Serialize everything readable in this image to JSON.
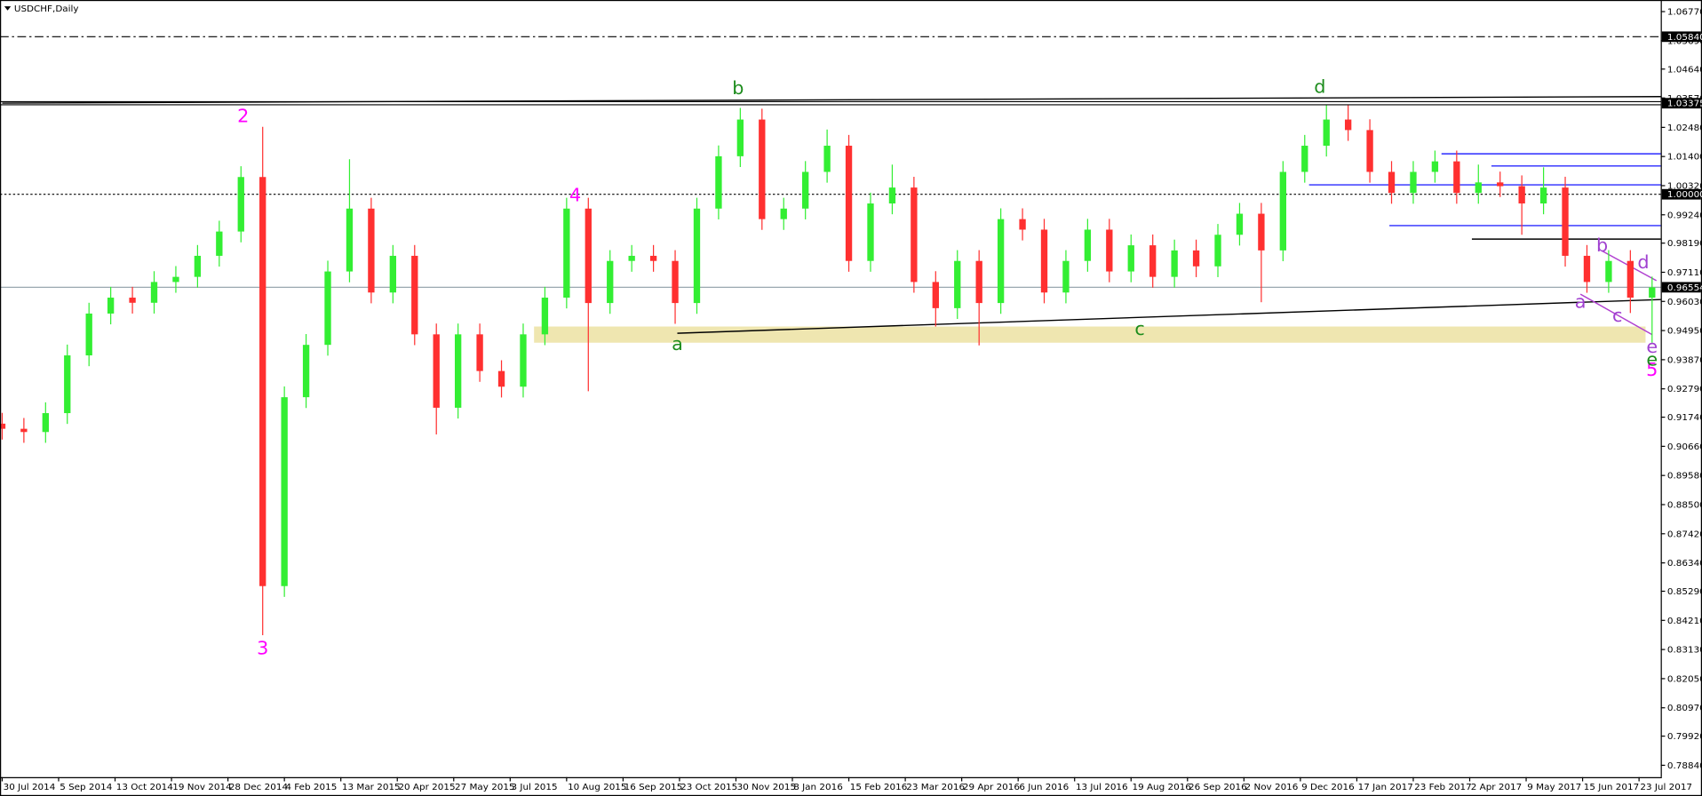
{
  "chart_data": {
    "type": "candlestick",
    "title": "USDCHF,Daily",
    "x": [
      0,
      10,
      20,
      30,
      40,
      50,
      60,
      70,
      80,
      90,
      100,
      110,
      120,
      130,
      140,
      150,
      160,
      170,
      180,
      190,
      200,
      210,
      220,
      230,
      240,
      250,
      260,
      270,
      280,
      290,
      300,
      310,
      320,
      330,
      340,
      350,
      360,
      370,
      380,
      390,
      400,
      410,
      420,
      430,
      440,
      450,
      460,
      470,
      480,
      490,
      500,
      510,
      520,
      530,
      540,
      550,
      560,
      570,
      580,
      590,
      600,
      610,
      620,
      630,
      640,
      650,
      660,
      670,
      680,
      690,
      700,
      710,
      720,
      730,
      740,
      750,
      760
    ],
    "open": [
      0.915,
      0.9131,
      0.9119,
      0.9189,
      0.9403,
      0.9558,
      0.9617,
      0.9598,
      0.9675,
      0.9694,
      0.9772,
      0.9862,
      1.0064,
      0.8548,
      0.9248,
      0.9442,
      0.9714,
      0.9947,
      0.9636,
      0.9772,
      0.9481,
      0.9209,
      0.9481,
      0.9345,
      0.9287,
      0.9481,
      0.9617,
      0.9947,
      0.9597,
      0.9753,
      0.9772,
      0.9753,
      0.9597,
      0.9947,
      1.0141,
      1.0277,
      0.9908,
      0.9947,
      1.0083,
      1.018,
      0.9753,
      0.9966,
      1.0025,
      0.9675,
      0.9578,
      0.9753,
      0.9597,
      0.9908,
      0.9869,
      0.9636,
      0.9753,
      0.9869,
      0.9714,
      0.9811,
      0.9694,
      0.9792,
      0.9733,
      0.985,
      0.9928,
      0.9792,
      1.0083,
      1.018,
      1.0277,
      1.0238,
      1.0083,
      1.0005,
      1.0083,
      1.0122,
      1.0005,
      1.0044,
      1.003,
      0.9966,
      1.0025,
      0.9772,
      0.9675,
      0.9753,
      0.9617
    ],
    "high": [
      0.919,
      0.9171,
      0.9229,
      0.9443,
      0.9598,
      0.9657,
      0.9657,
      0.9715,
      0.9734,
      0.9812,
      0.9902,
      1.0104,
      1.025,
      0.9288,
      0.9482,
      0.9754,
      1.013,
      0.9987,
      0.9812,
      0.9812,
      0.9521,
      0.9521,
      0.9521,
      0.9385,
      0.9521,
      0.9657,
      0.9987,
      0.9987,
      0.9793,
      0.9812,
      0.9812,
      0.9793,
      0.9987,
      1.0181,
      1.032,
      1.0317,
      0.9987,
      1.0123,
      1.024,
      1.022,
      1.0006,
      1.011,
      1.0065,
      0.9715,
      0.9793,
      0.9793,
      0.9948,
      0.9948,
      0.9909,
      0.9793,
      0.9909,
      0.9909,
      0.9851,
      0.9851,
      0.9832,
      0.9832,
      0.989,
      0.9968,
      0.9968,
      1.0123,
      1.022,
      1.033,
      1.033,
      1.0278,
      1.0123,
      1.0123,
      1.0162,
      1.0162,
      1.011,
      1.0084,
      1.007,
      1.01,
      1.0065,
      0.9812,
      0.9793,
      0.9793,
      0.9695
    ],
    "low": [
      0.9091,
      0.9079,
      0.9079,
      0.9149,
      0.9363,
      0.9518,
      0.9558,
      0.9558,
      0.9635,
      0.9654,
      0.9732,
      0.9822,
      0.8366,
      0.8508,
      0.9208,
      0.9402,
      0.9674,
      0.9596,
      0.9596,
      0.9441,
      0.911,
      0.9169,
      0.9305,
      0.9247,
      0.9247,
      0.9441,
      0.9577,
      0.927,
      0.9557,
      0.9713,
      0.9713,
      0.952,
      0.9557,
      0.9907,
      1.0101,
      0.9868,
      0.9868,
      0.9907,
      1.0043,
      0.9713,
      0.9713,
      0.9926,
      0.9635,
      0.951,
      0.9538,
      0.944,
      0.9557,
      0.9829,
      0.9596,
      0.9596,
      0.9713,
      0.9674,
      0.9674,
      0.9654,
      0.9654,
      0.9693,
      0.9693,
      0.981,
      0.96,
      0.9752,
      1.0043,
      1.014,
      1.0198,
      1.0043,
      0.9965,
      0.9965,
      1.0043,
      0.9965,
      0.9965,
      0.999,
      0.985,
      0.9926,
      0.9732,
      0.9635,
      0.9635,
      0.956,
      0.945
    ],
    "close": [
      0.9131,
      0.9119,
      0.9189,
      0.9403,
      0.9558,
      0.9617,
      0.9598,
      0.9675,
      0.9694,
      0.9772,
      0.9862,
      1.0064,
      0.8548,
      0.9248,
      0.9442,
      0.9714,
      0.9947,
      0.9636,
      0.9772,
      0.9481,
      0.9209,
      0.9481,
      0.9345,
      0.9287,
      0.9481,
      0.9617,
      0.9947,
      0.9597,
      0.9753,
      0.9772,
      0.9753,
      0.9597,
      0.9947,
      1.0141,
      1.0277,
      0.9908,
      0.9947,
      1.0083,
      1.018,
      0.9753,
      0.9966,
      1.0025,
      0.9675,
      0.9578,
      0.9753,
      0.9597,
      0.9908,
      0.9869,
      0.9636,
      0.9753,
      0.9869,
      0.9714,
      0.9811,
      0.9694,
      0.9792,
      0.9733,
      0.985,
      0.9928,
      0.9792,
      1.0083,
      1.018,
      1.0277,
      1.0238,
      1.0083,
      1.0005,
      1.0083,
      1.0122,
      1.0005,
      1.0044,
      1.003,
      0.9966,
      1.0025,
      0.9772,
      0.9675,
      0.9753,
      0.9617,
      0.9655
    ],
    "up_color": "#33ee33",
    "down_color": "#ff3030",
    "xlim": [
      -1,
      764
    ],
    "ylim": [
      0.784,
      1.072
    ],
    "xticks": [
      {
        "value": 0,
        "label": "30 Jul 2014"
      },
      {
        "value": 26,
        "label": "5 Sep 2014"
      },
      {
        "value": 52,
        "label": "13 Oct 2014"
      },
      {
        "value": 78,
        "label": "19 Nov 2014"
      },
      {
        "value": 104,
        "label": "28 Dec 2014"
      },
      {
        "value": 130,
        "label": "4 Feb 2015"
      },
      {
        "value": 156,
        "label": "13 Mar 2015"
      },
      {
        "value": 182,
        "label": "20 Apr 2015"
      },
      {
        "value": 208,
        "label": "27 May 2015"
      },
      {
        "value": 234,
        "label": "3 Jul 2015"
      },
      {
        "value": 260,
        "label": "10 Aug 2015"
      },
      {
        "value": 286,
        "label": "16 Sep 2015"
      },
      {
        "value": 312,
        "label": "23 Oct 2015"
      },
      {
        "value": 338,
        "label": "30 Nov 2015"
      },
      {
        "value": 364,
        "label": "8 Jan 2016"
      },
      {
        "value": 390,
        "label": "15 Feb 2016"
      },
      {
        "value": 416,
        "label": "23 Mar 2016"
      },
      {
        "value": 442,
        "label": "29 Apr 2016"
      },
      {
        "value": 468,
        "label": "6 Jun 2016"
      },
      {
        "value": 494,
        "label": "13 Jul 2016"
      },
      {
        "value": 520,
        "label": "19 Aug 2016"
      },
      {
        "value": 546,
        "label": "26 Sep 2016"
      },
      {
        "value": 572,
        "label": "2 Nov 2016"
      },
      {
        "value": 598,
        "label": "9 Dec 2016"
      },
      {
        "value": 624,
        "label": "17 Jan 2017"
      },
      {
        "value": 650,
        "label": "23 Feb 2017"
      },
      {
        "value": 676,
        "label": "2 Apr 2017"
      },
      {
        "value": 702,
        "label": "9 May 2017"
      },
      {
        "value": 728,
        "label": "15 Jun 2017"
      },
      {
        "value": 754,
        "label": "23 Jul 2017"
      }
    ],
    "yticks": [
      {
        "value": 1.0677,
        "label": "1.06770"
      },
      {
        "value": 1.0569,
        "label": "1.05690"
      },
      {
        "value": 1.0464,
        "label": "1.04640"
      },
      {
        "value": 1.0357,
        "label": "1.03570"
      },
      {
        "value": 1.0248,
        "label": "1.02480"
      },
      {
        "value": 1.014,
        "label": "1.01400"
      },
      {
        "value": 1.0032,
        "label": "1.00320"
      },
      {
        "value": 0.9924,
        "label": "0.99240"
      },
      {
        "value": 0.9819,
        "label": "0.98190"
      },
      {
        "value": 0.9711,
        "label": "0.97110"
      },
      {
        "value": 0.9603,
        "label": "0.96030"
      },
      {
        "value": 0.9495,
        "label": "0.94950"
      },
      {
        "value": 0.9387,
        "label": "0.93870"
      },
      {
        "value": 0.9279,
        "label": "0.92790"
      },
      {
        "value": 0.9174,
        "label": "0.91740"
      },
      {
        "value": 0.9066,
        "label": "0.90660"
      },
      {
        "value": 0.8958,
        "label": "0.89580"
      },
      {
        "value": 0.885,
        "label": "0.88500"
      },
      {
        "value": 0.8742,
        "label": "0.87420"
      },
      {
        "value": 0.8634,
        "label": "0.86340"
      },
      {
        "value": 0.8529,
        "label": "0.85290"
      },
      {
        "value": 0.8421,
        "label": "0.84210"
      },
      {
        "value": 0.8313,
        "label": "0.83130"
      },
      {
        "value": 0.8205,
        "label": "0.82050"
      },
      {
        "value": 0.8097,
        "label": "0.80970"
      },
      {
        "value": 0.7992,
        "label": "0.79920"
      },
      {
        "value": 0.7884,
        "label": "0.78840"
      }
    ],
    "levels": [
      {
        "value": 1.0584,
        "label": "1.05840",
        "style": "dashdot",
        "color": "#000000"
      },
      {
        "value": 1.03375,
        "label": "1.03375",
        "style": "double",
        "color": "#000000"
      },
      {
        "value": 1.0,
        "label": "1.00000",
        "style": "dotted",
        "color": "#000000"
      },
      {
        "value": 0.96554,
        "label": "0.96554",
        "style": "solid",
        "color": "#9aa7b0"
      }
    ],
    "zones": [
      {
        "x": [
          245,
          757
        ],
        "y": [
          0.945,
          0.951
        ],
        "color": "#efe6b0"
      }
    ],
    "trendlines": [
      {
        "x": [
          311,
          764
        ],
        "y": [
          0.9485,
          0.961
        ],
        "color": "#000000"
      },
      {
        "x": [
          0,
          764
        ],
        "y": [
          1.0338,
          1.0362
        ],
        "color": "#000000"
      },
      {
        "x": [
          663,
          764
        ],
        "y": [
          1.015,
          1.015
        ],
        "color": "#2a2aff"
      },
      {
        "x": [
          686,
          764
        ],
        "y": [
          1.0105,
          1.0105
        ],
        "color": "#2a2aff"
      },
      {
        "x": [
          602,
          764
        ],
        "y": [
          1.0035,
          1.0035
        ],
        "color": "#2a2aff"
      },
      {
        "x": [
          639,
          764
        ],
        "y": [
          0.9884,
          0.9884
        ],
        "color": "#2a2aff"
      },
      {
        "x": [
          677,
          764
        ],
        "y": [
          0.9834,
          0.9834
        ],
        "color": "#000000"
      },
      {
        "x": [
          727,
          760
        ],
        "y": [
          0.963,
          0.948
        ],
        "color": "#b040d0"
      },
      {
        "x": [
          737,
          762
        ],
        "y": [
          0.979,
          0.968
        ],
        "color": "#b040d0"
      }
    ],
    "annotations": [
      {
        "text": "2",
        "x": 111,
        "y": 1.0287,
        "color": "#ff00ff"
      },
      {
        "text": "3",
        "x": 120,
        "y": 0.8314,
        "color": "#ff00ff"
      },
      {
        "text": "4",
        "x": 264,
        "y": 0.9993,
        "color": "#ff00ff"
      },
      {
        "text": "5",
        "x": 760,
        "y": 0.9347,
        "color": "#ff00ff"
      },
      {
        "text": "a",
        "x": 311,
        "y": 0.9443,
        "color": "#1c8c1c"
      },
      {
        "text": "b",
        "x": 339,
        "y": 1.0391,
        "color": "#1c8c1c"
      },
      {
        "text": "c",
        "x": 524,
        "y": 0.9498,
        "color": "#1c8c1c"
      },
      {
        "text": "d",
        "x": 607,
        "y": 1.0395,
        "color": "#1c8c1c"
      },
      {
        "text": "e",
        "x": 760,
        "y": 0.9385,
        "color": "#1c8c1c"
      },
      {
        "text": "a",
        "x": 727,
        "y": 0.9598,
        "color": "#a040d0"
      },
      {
        "text": "b",
        "x": 737,
        "y": 0.9807,
        "color": "#a040d0"
      },
      {
        "text": "c",
        "x": 744,
        "y": 0.9548,
        "color": "#a040d0"
      },
      {
        "text": "d",
        "x": 756,
        "y": 0.9745,
        "color": "#a040d0"
      },
      {
        "text": "e",
        "x": 760,
        "y": 0.9432,
        "color": "#a040d0"
      }
    ]
  }
}
